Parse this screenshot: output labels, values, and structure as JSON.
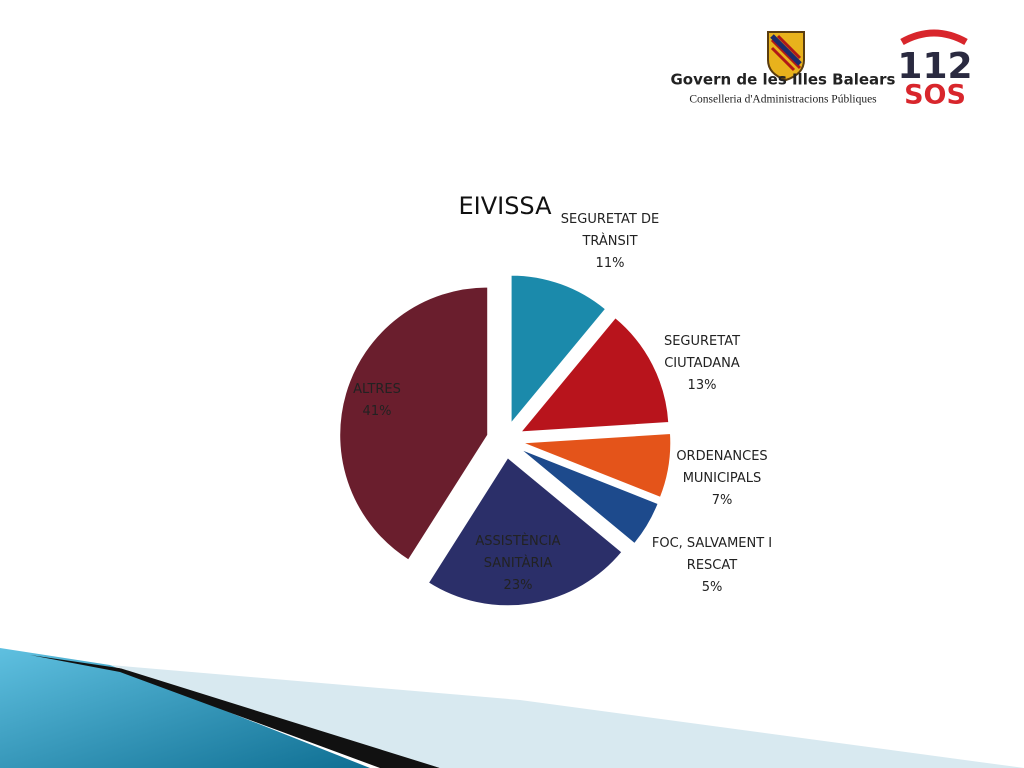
{
  "header": {
    "org": "Govern de les Illes Balears",
    "dept": "Conselleria d'Administracions Públiques",
    "logo_number": "112",
    "logo_word": "SOS"
  },
  "chart_data": {
    "type": "pie",
    "title": "EIVISSA",
    "categories": [
      "SEGURETAT DE TRÀNSIT",
      "SEGURETAT CIUTADANA",
      "ORDENANCES MUNICIPALS",
      "FOC, SALVAMENT I RESCAT",
      "ASSISTÈNCIA SANITÀRIA",
      "ALTRES"
    ],
    "values": [
      11,
      13,
      7,
      5,
      23,
      41
    ],
    "value_labels": [
      "11%",
      "13%",
      "7%",
      "5%",
      "23%",
      "41%"
    ],
    "colors": [
      "#1b8aab",
      "#b8141c",
      "#e4541a",
      "#1d4a8c",
      "#2b2f69",
      "#6a1e2d"
    ]
  }
}
